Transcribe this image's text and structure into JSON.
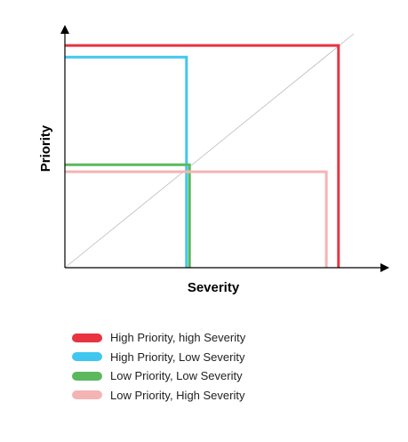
{
  "axes": {
    "x_label": "Severity",
    "y_label": "Priority"
  },
  "quadrants": [
    {
      "name": "High Priority, high Severity",
      "color": "#e83340",
      "priority": 0.95,
      "severity": 0.9
    },
    {
      "name": "High Priority, Low Severity",
      "color": "#41c7ef",
      "priority": 0.9,
      "severity": 0.4
    },
    {
      "name": "Low Priority, Low Severity",
      "color": "#5cb85c",
      "priority": 0.44,
      "severity": 0.41
    },
    {
      "name": "Low Priority, High Severity",
      "color": "#f5b4b4",
      "priority": 0.41,
      "severity": 0.86
    }
  ],
  "diagonal": {
    "color": "#bbbbbb"
  },
  "axis_color": "#000000"
}
